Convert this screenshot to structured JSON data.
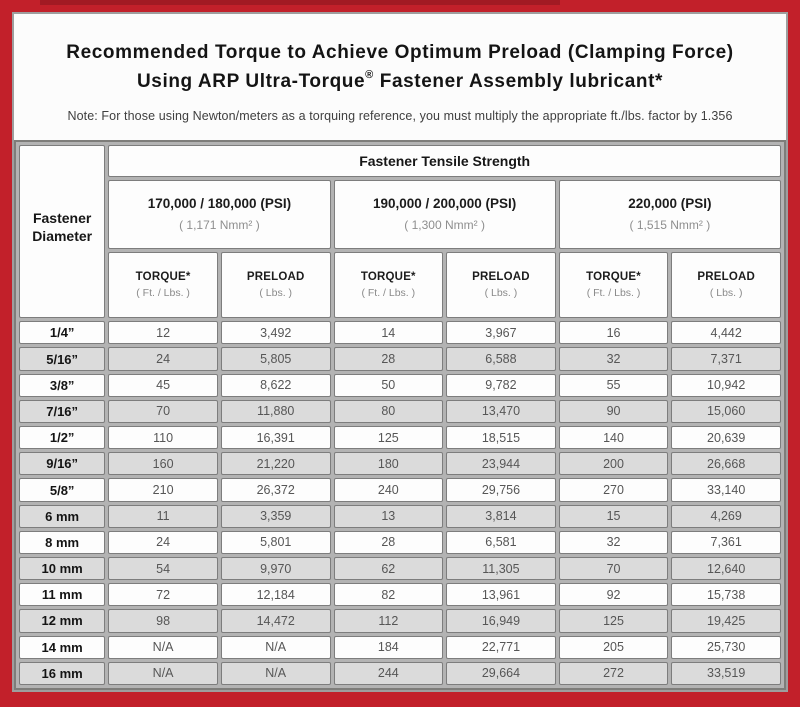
{
  "title": {
    "line1": "Recommended Torque to Achieve Optimum Preload (Clamping Force)",
    "line2_pre": "Using ARP Ultra-Torque",
    "line2_sup": "®",
    "line2_post": " Fastener Assembly lubricant*"
  },
  "note": "Note: For those using Newton/meters as a torquing reference, you must multiply the appropriate ft./lbs. factor by 1.356",
  "table": {
    "tensile_header": "Fastener Tensile Strength",
    "diameter_header": "Fastener Diameter",
    "psi_groups": [
      {
        "psi": "170,000 / 180,000 (PSI)",
        "nmm": "( 1,171 Nmm² )"
      },
      {
        "psi": "190,000 / 200,000 (PSI)",
        "nmm": "( 1,300 Nmm² )"
      },
      {
        "psi": "220,000 (PSI)",
        "nmm": "( 1,515 Nmm² )"
      }
    ],
    "torque_label": "TORQUE*",
    "torque_unit": "( Ft. / Lbs. )",
    "preload_label": "PRELOAD",
    "preload_unit": "( Lbs. )",
    "rows": [
      {
        "d": "1/4”",
        "v": [
          "12",
          "3,492",
          "14",
          "3,967",
          "16",
          "4,442"
        ]
      },
      {
        "d": "5/16”",
        "v": [
          "24",
          "5,805",
          "28",
          "6,588",
          "32",
          "7,371"
        ]
      },
      {
        "d": "3/8”",
        "v": [
          "45",
          "8,622",
          "50",
          "9,782",
          "55",
          "10,942"
        ]
      },
      {
        "d": "7/16”",
        "v": [
          "70",
          "11,880",
          "80",
          "13,470",
          "90",
          "15,060"
        ]
      },
      {
        "d": "1/2”",
        "v": [
          "110",
          "16,391",
          "125",
          "18,515",
          "140",
          "20,639"
        ]
      },
      {
        "d": "9/16”",
        "v": [
          "160",
          "21,220",
          "180",
          "23,944",
          "200",
          "26,668"
        ]
      },
      {
        "d": "5/8”",
        "v": [
          "210",
          "26,372",
          "240",
          "29,756",
          "270",
          "33,140"
        ]
      },
      {
        "d": "6 mm",
        "v": [
          "11",
          "3,359",
          "13",
          "3,814",
          "15",
          "4,269"
        ]
      },
      {
        "d": "8 mm",
        "v": [
          "24",
          "5,801",
          "28",
          "6,581",
          "32",
          "7,361"
        ]
      },
      {
        "d": "10 mm",
        "v": [
          "54",
          "9,970",
          "62",
          "11,305",
          "70",
          "12,640"
        ]
      },
      {
        "d": "11 mm",
        "v": [
          "72",
          "12,184",
          "82",
          "13,961",
          "92",
          "15,738"
        ]
      },
      {
        "d": "12 mm",
        "v": [
          "98",
          "14,472",
          "112",
          "16,949",
          "125",
          "19,425"
        ]
      },
      {
        "d": "14 mm",
        "v": [
          "N/A",
          "N/A",
          "184",
          "22,771",
          "205",
          "25,730"
        ]
      },
      {
        "d": "16 mm",
        "v": [
          "N/A",
          "N/A",
          "244",
          "29,664",
          "272",
          "33,519"
        ]
      }
    ]
  },
  "colors": {
    "frame_red": "#c2202a",
    "header_gray": "#c9c9c9",
    "row_alt_gray": "#dbdbdb",
    "cell_border": "#7d7d7d"
  }
}
